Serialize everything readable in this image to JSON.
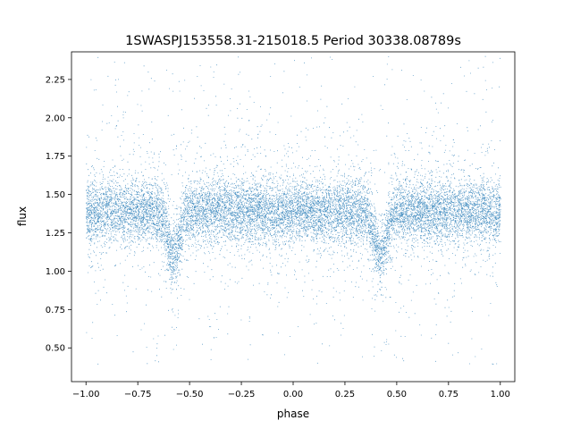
{
  "chart_data": {
    "type": "scatter",
    "title": "1SWASPJ153558.31-215018.5 Period 30338.08789s",
    "xlabel": "phase",
    "ylabel": "flux",
    "xlim": [
      -1.07,
      1.07
    ],
    "ylim": [
      0.28,
      2.43
    ],
    "x_ticks": [
      -1.0,
      -0.75,
      -0.5,
      -0.25,
      0.0,
      0.25,
      0.5,
      0.75,
      1.0
    ],
    "x_tick_labels": [
      "−1.00",
      "−0.75",
      "−0.50",
      "−0.25",
      "0.00",
      "0.25",
      "0.50",
      "0.75",
      "1.00"
    ],
    "y_ticks": [
      0.5,
      0.75,
      1.0,
      1.25,
      1.5,
      1.75,
      2.0,
      2.25
    ],
    "y_tick_labels": [
      "0.50",
      "0.75",
      "1.00",
      "1.25",
      "1.50",
      "1.75",
      "2.00",
      "2.25"
    ],
    "point_color": "#1f77b4",
    "grid": false,
    "legend": "none",
    "series": [
      {
        "x_range": [
          -1.0,
          1.0
        ],
        "baseline_flux": 1.39,
        "eclipse_phases": [
          -0.58,
          0.42
        ],
        "eclipse_min_flux": 1.1,
        "flux_range": [
          0.38,
          2.4
        ],
        "approx_point_count": 60000
      }
    ]
  }
}
